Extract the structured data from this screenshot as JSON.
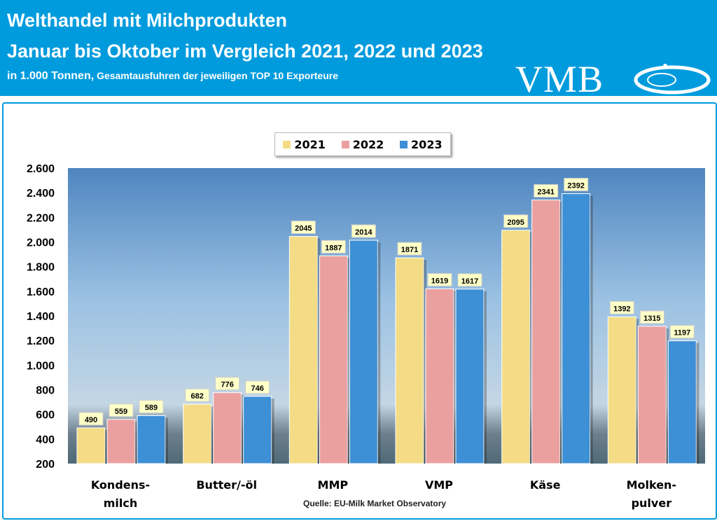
{
  "header": {
    "title": "Welthandel mit Milchprodukten",
    "subtitle": "Januar bis Oktober im Vergleich 2021, 2022 und 2023",
    "unit_note_a": "in 1.000 Tonnen,",
    "unit_note_b": "Gesamtausfuhren der jeweiligen TOP 10 Exporteure",
    "logo": "VMB"
  },
  "source": "Quelle: EU-Milk Market Observatory",
  "chart_data": {
    "type": "bar",
    "categories": [
      "Kondens-\nmilch",
      "Butter/-öl",
      "MMP",
      "VMP",
      "Käse",
      "Molken-\npulver"
    ],
    "series": [
      {
        "name": "2021",
        "color": "#f3dc85",
        "values": [
          490,
          682,
          2045,
          1871,
          2095,
          1392
        ]
      },
      {
        "name": "2022",
        "color": "#eba0a0",
        "values": [
          559,
          776,
          1887,
          1619,
          2341,
          1315
        ]
      },
      {
        "name": "2023",
        "color": "#3d8fd6",
        "values": [
          589,
          746,
          2014,
          1617,
          2392,
          1197
        ]
      }
    ],
    "ylim": [
      200,
      2600
    ],
    "yticks": [
      "200",
      "400",
      "600",
      "800",
      "1.000",
      "1.200",
      "1.400",
      "1.600",
      "1.800",
      "2.000",
      "2.200",
      "2.400",
      "2.600"
    ],
    "legend": "top-center",
    "grid": false,
    "data_labels": true
  }
}
